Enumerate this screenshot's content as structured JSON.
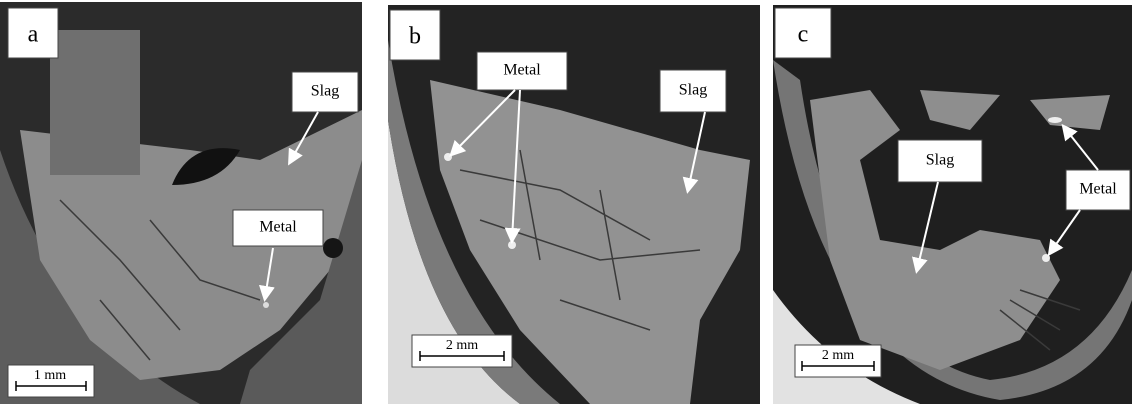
{
  "panels": [
    {
      "label": "a",
      "annotations": [
        "Slag",
        "Metal"
      ],
      "scale_bar": "1 mm"
    },
    {
      "label": "b",
      "annotations": [
        "Metal",
        "Slag"
      ],
      "scale_bar": "2 mm"
    },
    {
      "label": "c",
      "annotations": [
        "Slag",
        "Metal"
      ],
      "scale_bar": "2 mm"
    }
  ]
}
